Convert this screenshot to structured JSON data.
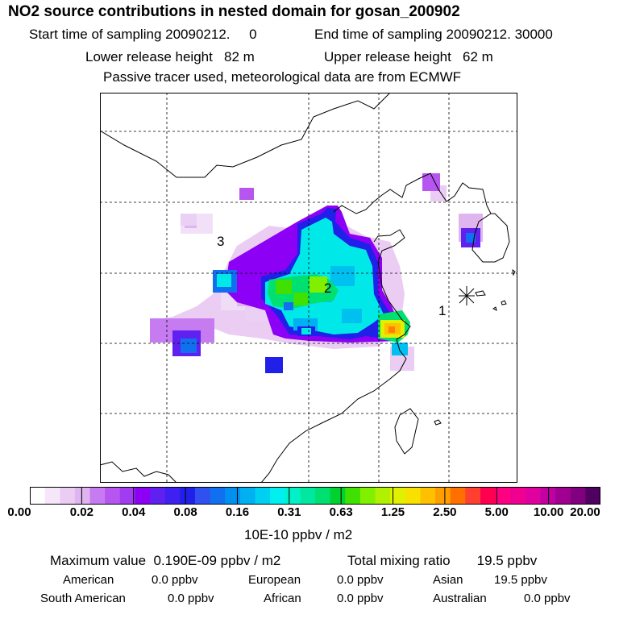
{
  "title": "NO2 source contributions in nested domain for gosan_200902",
  "header": {
    "start_label": "Start time of sampling",
    "start_value": "20090212.",
    "start_extra": "0",
    "end_label": "End time of sampling",
    "end_value": "20090212. 30000",
    "lower_label": "Lower release height",
    "lower_value": "82 m",
    "upper_label": "Upper release height",
    "upper_value": "62 m",
    "tracer_note": "Passive tracer used, meteorological data are from ECMWF"
  },
  "chart_data": {
    "type": "heatmap",
    "title": "NO2 source contributions in nested domain for gosan_200902",
    "units": "10E-10 ppbv / m2",
    "colorbar_ticks": [
      "0.00",
      "0.02",
      "0.04",
      "0.08",
      "0.16",
      "0.31",
      "0.63",
      "1.25",
      "2.50",
      "5.00",
      "10.00",
      "20.00"
    ],
    "colorbar_colors": [
      "#ffffff",
      "#f6e6fa",
      "#ebcdf4",
      "#dfb4ef",
      "#c67cf0",
      "#b655f0",
      "#a23cf0",
      "#8c00f5",
      "#6020f0",
      "#4020f0",
      "#2020e8",
      "#3050f0",
      "#1070f0",
      "#0090f0",
      "#00b0f0",
      "#00d0f0",
      "#00f0f0",
      "#00f0c8",
      "#00e8a0",
      "#00e070",
      "#00d030",
      "#40e000",
      "#80f000",
      "#b0f000",
      "#e0f000",
      "#f8e000",
      "#ffc000",
      "#ffa000",
      "#ff7000",
      "#ff4030",
      "#ff0050",
      "#ff0080",
      "#f00090",
      "#e000a0",
      "#c000a0",
      "#a00090",
      "#800080",
      "#500060"
    ],
    "map_labels": [
      "1",
      "2",
      "3"
    ],
    "receptor": "Gosan"
  },
  "footer": {
    "max_label": "Maximum value",
    "max_value": "0.190E-09 ppbv / m2",
    "total_label": "Total mixing ratio",
    "total_value": "19.5 ppbv",
    "regions": [
      {
        "name": "American",
        "value": "0.0 ppbv"
      },
      {
        "name": "European",
        "value": "0.0 ppbv"
      },
      {
        "name": "Asian",
        "value": "19.5 ppbv"
      },
      {
        "name": "South American",
        "value": "0.0 ppbv"
      },
      {
        "name": "African",
        "value": "0.0 ppbv"
      },
      {
        "name": "Australian",
        "value": "0.0 ppbv"
      }
    ]
  }
}
